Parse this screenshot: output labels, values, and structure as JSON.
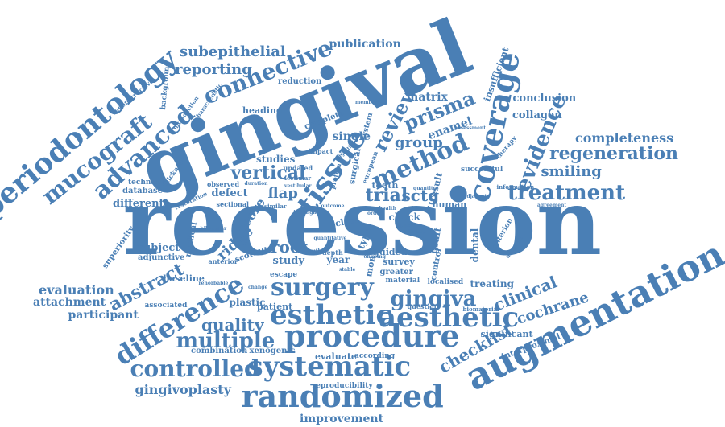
{
  "palette": {
    "word_color": "#4a7fb5",
    "background": "#ffffff"
  },
  "words": [
    {
      "text": "recession"
    },
    {
      "text": "gingival"
    },
    {
      "text": "augmentation"
    },
    {
      "text": "periodontology"
    },
    {
      "text": "coverage"
    },
    {
      "text": "tissue"
    },
    {
      "text": "procedure"
    },
    {
      "text": "esthetic"
    },
    {
      "text": "aesthetic"
    },
    {
      "text": "randomized"
    },
    {
      "text": "systematic"
    },
    {
      "text": "surgery"
    },
    {
      "text": "difference"
    },
    {
      "text": "method"
    },
    {
      "text": "mucograft"
    },
    {
      "text": "advanced"
    },
    {
      "text": "connective"
    },
    {
      "text": "treatment"
    },
    {
      "text": "regeneration"
    },
    {
      "text": "evidence"
    },
    {
      "text": "controlled"
    },
    {
      "text": "gingiva"
    },
    {
      "text": "multiple"
    },
    {
      "text": "prisma"
    },
    {
      "text": "review"
    },
    {
      "text": "completeness"
    },
    {
      "text": "smiling"
    },
    {
      "text": "vertical"
    },
    {
      "text": "trial"
    },
    {
      "text": "sctg"
    },
    {
      "text": "abstract"
    },
    {
      "text": "quality"
    },
    {
      "text": "clinical"
    },
    {
      "text": "cochrane"
    },
    {
      "text": "checklist"
    },
    {
      "text": "subepithelial"
    },
    {
      "text": "reporting"
    },
    {
      "text": "publication"
    },
    {
      "text": "evaluation"
    },
    {
      "text": "attachment"
    },
    {
      "text": "participant"
    },
    {
      "text": "root"
    },
    {
      "text": "ridge"
    },
    {
      "text": "gingivoplasty"
    },
    {
      "text": "improvement"
    },
    {
      "text": "group"
    },
    {
      "text": "enamel"
    },
    {
      "text": "matrix"
    },
    {
      "text": "conclusion"
    },
    {
      "text": "collagen"
    },
    {
      "text": "insufficient"
    },
    {
      "text": "flap"
    },
    {
      "text": "score"
    },
    {
      "text": "defect"
    },
    {
      "text": "different"
    },
    {
      "text": "database"
    },
    {
      "text": "technique"
    },
    {
      "text": "studies"
    },
    {
      "text": "heading"
    },
    {
      "text": "reduction"
    },
    {
      "text": "single"
    },
    {
      "text": "subject"
    },
    {
      "text": "adjunctive"
    },
    {
      "text": "baseline"
    },
    {
      "text": "associated"
    },
    {
      "text": "plastic"
    },
    {
      "text": "patient"
    },
    {
      "text": "combination"
    },
    {
      "text": "xenogenic"
    },
    {
      "text": "evaluate"
    },
    {
      "text": "according"
    },
    {
      "text": "reproducibility"
    },
    {
      "text": "treating"
    },
    {
      "text": "significant"
    },
    {
      "text": "interproximal"
    },
    {
      "text": "localised"
    },
    {
      "text": "question"
    },
    {
      "text": "biomaterial"
    },
    {
      "text": "human"
    },
    {
      "text": "guided"
    },
    {
      "text": "check"
    },
    {
      "text": "class"
    },
    {
      "text": "study"
    },
    {
      "text": "year"
    },
    {
      "text": "survey"
    },
    {
      "text": "greater"
    },
    {
      "text": "material"
    },
    {
      "text": "depth"
    },
    {
      "text": "escape"
    },
    {
      "text": "dental"
    },
    {
      "text": "graft"
    },
    {
      "text": "criterion"
    },
    {
      "text": "ascorbic"
    },
    {
      "text": "control"
    },
    {
      "text": "month"
    },
    {
      "text": "type"
    },
    {
      "text": "result"
    },
    {
      "text": "tooth"
    },
    {
      "text": "complete"
    },
    {
      "text": "successful"
    },
    {
      "text": "information"
    },
    {
      "text": "agreement"
    },
    {
      "text": "superiority"
    },
    {
      "text": "medical"
    },
    {
      "text": "scoring"
    },
    {
      "text": "anterior"
    },
    {
      "text": "sectional"
    },
    {
      "text": "observed"
    },
    {
      "text": "restoration"
    },
    {
      "text": "thickness"
    },
    {
      "text": "introduction"
    },
    {
      "text": "reconstructive"
    },
    {
      "text": "background"
    },
    {
      "text": "characteristic"
    },
    {
      "text": "updated"
    },
    {
      "text": "acellular"
    },
    {
      "text": "impact"
    },
    {
      "text": "protein"
    },
    {
      "text": "surgical"
    },
    {
      "text": "system"
    },
    {
      "text": "european"
    },
    {
      "text": "objective"
    },
    {
      "text": "assessment"
    },
    {
      "text": "therapy"
    },
    {
      "text": "membrane"
    },
    {
      "text": "health"
    },
    {
      "text": "similar"
    },
    {
      "text": "order"
    },
    {
      "text": "change"
    },
    {
      "text": "author"
    },
    {
      "text": "upper"
    },
    {
      "text": "renorbable"
    },
    {
      "text": "bilaminar"
    },
    {
      "text": "duration"
    },
    {
      "text": "vestibular"
    },
    {
      "text": "dermal"
    },
    {
      "text": "adjacent"
    },
    {
      "text": "ongoing"
    },
    {
      "text": "efficacy"
    },
    {
      "text": "quantitative"
    },
    {
      "text": "stable"
    },
    {
      "text": "highlight"
    },
    {
      "text": "outcome"
    },
    {
      "text": "quantity"
    }
  ]
}
